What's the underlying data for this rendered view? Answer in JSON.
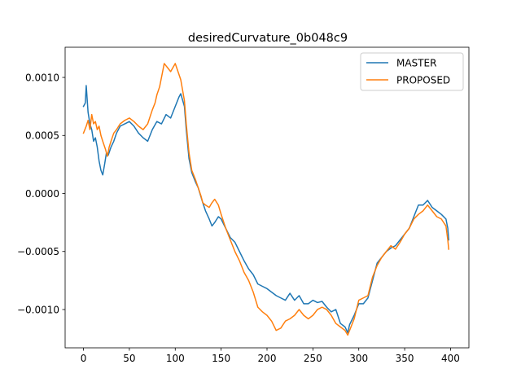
{
  "chart_data": {
    "type": "line",
    "title": "desiredCurvature_0b048c9",
    "xlabel": "",
    "ylabel": "",
    "xlim": [
      -20,
      420
    ],
    "ylim": [
      -0.00133,
      0.00126
    ],
    "x_ticks": [
      0,
      50,
      100,
      150,
      200,
      250,
      300,
      350,
      400
    ],
    "x_tick_labels": [
      "0",
      "50",
      "100",
      "150",
      "200",
      "250",
      "300",
      "350",
      "400"
    ],
    "y_ticks": [
      0.001,
      0.0005,
      0.0,
      -0.0005,
      -0.001
    ],
    "y_tick_labels": [
      "0.0010",
      "0.0005",
      "0.0000",
      "−0.0005",
      "−0.0010"
    ],
    "grid": false,
    "legend_position": "top-right",
    "series": [
      {
        "name": "MASTER",
        "color": "#1f77b4",
        "points": [
          [
            0,
            0.00075
          ],
          [
            2,
            0.00078
          ],
          [
            3,
            0.00093
          ],
          [
            5,
            0.0007
          ],
          [
            7,
            0.0006
          ],
          [
            9,
            0.00055
          ],
          [
            11,
            0.00045
          ],
          [
            13,
            0.00048
          ],
          [
            15,
            0.0004
          ],
          [
            17,
            0.00028
          ],
          [
            19,
            0.0002
          ],
          [
            21,
            0.00016
          ],
          [
            23,
            0.00025
          ],
          [
            25,
            0.00035
          ],
          [
            27,
            0.00033
          ],
          [
            30,
            0.0004
          ],
          [
            33,
            0.00045
          ],
          [
            36,
            0.00052
          ],
          [
            40,
            0.00058
          ],
          [
            45,
            0.0006
          ],
          [
            50,
            0.00062
          ],
          [
            55,
            0.00058
          ],
          [
            60,
            0.00052
          ],
          [
            65,
            0.00048
          ],
          [
            70,
            0.00045
          ],
          [
            75,
            0.00055
          ],
          [
            80,
            0.00062
          ],
          [
            85,
            0.0006
          ],
          [
            90,
            0.00068
          ],
          [
            95,
            0.00065
          ],
          [
            100,
            0.00075
          ],
          [
            104,
            0.00083
          ],
          [
            106,
            0.00086
          ],
          [
            110,
            0.00075
          ],
          [
            112,
            0.00055
          ],
          [
            115,
            0.0003
          ],
          [
            118,
            0.00018
          ],
          [
            122,
            0.0001
          ],
          [
            125,
            5e-05
          ],
          [
            130,
            -8e-05
          ],
          [
            133,
            -0.00015
          ],
          [
            137,
            -0.00022
          ],
          [
            140,
            -0.00028
          ],
          [
            143,
            -0.00025
          ],
          [
            147,
            -0.0002
          ],
          [
            150,
            -0.00022
          ],
          [
            155,
            -0.0003
          ],
          [
            160,
            -0.00038
          ],
          [
            165,
            -0.00042
          ],
          [
            170,
            -0.0005
          ],
          [
            175,
            -0.00058
          ],
          [
            180,
            -0.00065
          ],
          [
            185,
            -0.0007
          ],
          [
            190,
            -0.00078
          ],
          [
            195,
            -0.0008
          ],
          [
            200,
            -0.00082
          ],
          [
            205,
            -0.00085
          ],
          [
            210,
            -0.00088
          ],
          [
            215,
            -0.0009
          ],
          [
            220,
            -0.00092
          ],
          [
            225,
            -0.00086
          ],
          [
            230,
            -0.00092
          ],
          [
            235,
            -0.00088
          ],
          [
            240,
            -0.00095
          ],
          [
            245,
            -0.00095
          ],
          [
            250,
            -0.00092
          ],
          [
            255,
            -0.00094
          ],
          [
            260,
            -0.00093
          ],
          [
            265,
            -0.00098
          ],
          [
            270,
            -0.00102
          ],
          [
            275,
            -0.001
          ],
          [
            280,
            -0.00112
          ],
          [
            285,
            -0.00115
          ],
          [
            288,
            -0.0012
          ],
          [
            290,
            -0.00113
          ],
          [
            295,
            -0.00105
          ],
          [
            300,
            -0.00095
          ],
          [
            305,
            -0.00095
          ],
          [
            310,
            -0.0009
          ],
          [
            315,
            -0.00075
          ],
          [
            320,
            -0.0006
          ],
          [
            325,
            -0.00055
          ],
          [
            330,
            -0.0005
          ],
          [
            335,
            -0.00047
          ],
          [
            340,
            -0.00045
          ],
          [
            345,
            -0.0004
          ],
          [
            350,
            -0.00035
          ],
          [
            355,
            -0.0003
          ],
          [
            360,
            -0.0002
          ],
          [
            365,
            -0.0001
          ],
          [
            370,
            -0.0001
          ],
          [
            375,
            -6e-05
          ],
          [
            380,
            -0.00012
          ],
          [
            385,
            -0.00015
          ],
          [
            390,
            -0.00018
          ],
          [
            395,
            -0.00022
          ],
          [
            397,
            -0.0003
          ],
          [
            398,
            -0.0004
          ]
        ]
      },
      {
        "name": "PROPOSED",
        "color": "#ff7f0e",
        "points": [
          [
            0,
            0.00052
          ],
          [
            3,
            0.00058
          ],
          [
            5,
            0.00063
          ],
          [
            7,
            0.00055
          ],
          [
            9,
            0.00068
          ],
          [
            11,
            0.0006
          ],
          [
            13,
            0.00062
          ],
          [
            15,
            0.00055
          ],
          [
            17,
            0.00058
          ],
          [
            19,
            0.0005
          ],
          [
            21,
            0.00045
          ],
          [
            24,
            0.00038
          ],
          [
            26,
            0.00032
          ],
          [
            28,
            0.0004
          ],
          [
            30,
            0.00045
          ],
          [
            33,
            0.00052
          ],
          [
            36,
            0.00055
          ],
          [
            40,
            0.0006
          ],
          [
            45,
            0.00063
          ],
          [
            50,
            0.00065
          ],
          [
            55,
            0.00062
          ],
          [
            60,
            0.00058
          ],
          [
            65,
            0.00055
          ],
          [
            70,
            0.0006
          ],
          [
            75,
            0.00072
          ],
          [
            78,
            0.00078
          ],
          [
            80,
            0.00085
          ],
          [
            83,
            0.00092
          ],
          [
            86,
            0.00104
          ],
          [
            88,
            0.00112
          ],
          [
            90,
            0.0011
          ],
          [
            92,
            0.00108
          ],
          [
            95,
            0.00105
          ],
          [
            100,
            0.00112
          ],
          [
            103,
            0.00105
          ],
          [
            106,
            0.00098
          ],
          [
            110,
            0.0008
          ],
          [
            112,
            0.0006
          ],
          [
            115,
            0.00035
          ],
          [
            118,
            0.0002
          ],
          [
            122,
            0.00012
          ],
          [
            125,
            5e-05
          ],
          [
            128,
            -2e-05
          ],
          [
            130,
            -8e-05
          ],
          [
            133,
            -0.0001
          ],
          [
            137,
            -0.00012
          ],
          [
            140,
            -8e-05
          ],
          [
            143,
            -5e-05
          ],
          [
            147,
            -0.0001
          ],
          [
            150,
            -0.00018
          ],
          [
            155,
            -0.0003
          ],
          [
            160,
            -0.0004
          ],
          [
            165,
            -0.0005
          ],
          [
            170,
            -0.00058
          ],
          [
            175,
            -0.00068
          ],
          [
            180,
            -0.00075
          ],
          [
            185,
            -0.00085
          ],
          [
            190,
            -0.00098
          ],
          [
            195,
            -0.00102
          ],
          [
            200,
            -0.00105
          ],
          [
            205,
            -0.0011
          ],
          [
            210,
            -0.00118
          ],
          [
            215,
            -0.00116
          ],
          [
            220,
            -0.0011
          ],
          [
            225,
            -0.00108
          ],
          [
            230,
            -0.00105
          ],
          [
            235,
            -0.001
          ],
          [
            240,
            -0.00105
          ],
          [
            245,
            -0.00108
          ],
          [
            250,
            -0.00105
          ],
          [
            255,
            -0.001
          ],
          [
            260,
            -0.00098
          ],
          [
            265,
            -0.001
          ],
          [
            270,
            -0.00105
          ],
          [
            275,
            -0.00112
          ],
          [
            280,
            -0.00115
          ],
          [
            285,
            -0.00118
          ],
          [
            288,
            -0.00122
          ],
          [
            290,
            -0.00118
          ],
          [
            295,
            -0.00108
          ],
          [
            300,
            -0.00092
          ],
          [
            305,
            -0.0009
          ],
          [
            310,
            -0.00088
          ],
          [
            315,
            -0.00072
          ],
          [
            320,
            -0.00062
          ],
          [
            325,
            -0.00055
          ],
          [
            330,
            -0.0005
          ],
          [
            335,
            -0.00045
          ],
          [
            340,
            -0.00048
          ],
          [
            345,
            -0.00042
          ],
          [
            350,
            -0.00035
          ],
          [
            355,
            -0.0003
          ],
          [
            360,
            -0.00022
          ],
          [
            365,
            -0.00018
          ],
          [
            370,
            -0.00015
          ],
          [
            375,
            -0.0001
          ],
          [
            380,
            -0.00015
          ],
          [
            385,
            -0.0002
          ],
          [
            390,
            -0.00022
          ],
          [
            395,
            -0.00028
          ],
          [
            397,
            -0.0004
          ],
          [
            398,
            -0.00048
          ]
        ]
      }
    ]
  }
}
